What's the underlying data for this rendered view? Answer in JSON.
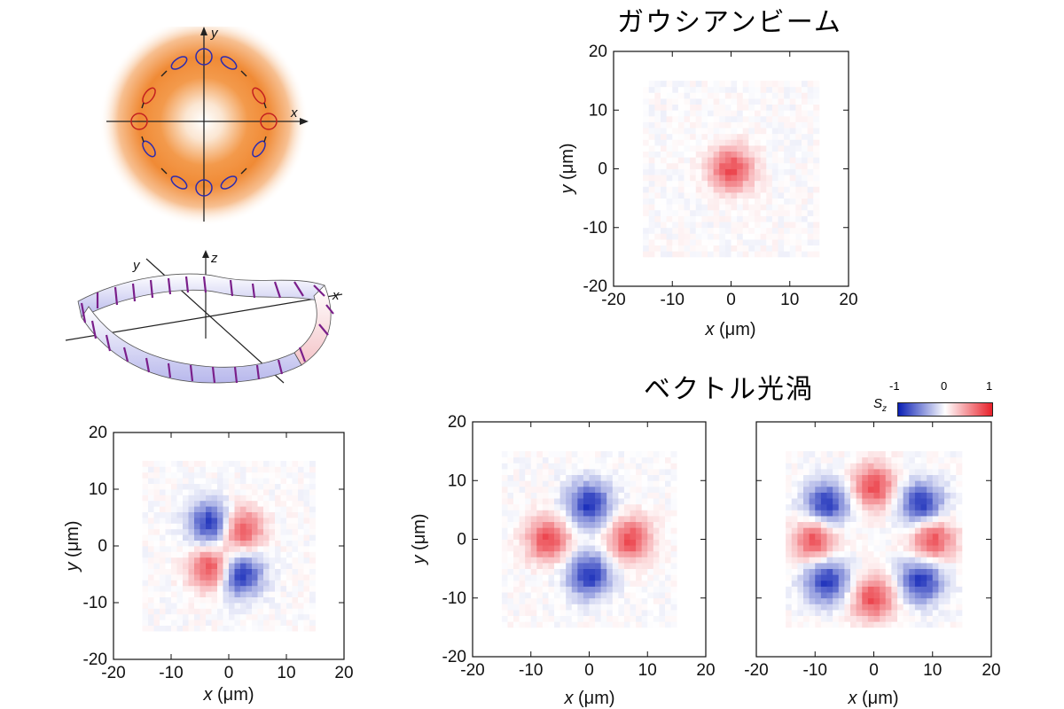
{
  "titles": {
    "gaussian": "ガウシアンビーム",
    "vector_vortex": "ベクトル光渦"
  },
  "axes": {
    "x_var": "x",
    "y_var": "y",
    "unit": "(μm)",
    "ticks": [
      "-20",
      "-10",
      "0",
      "10",
      "20"
    ]
  },
  "diagrams": {
    "top_x": "x",
    "top_y": "y",
    "wave_x": "x",
    "wave_y": "y",
    "wave_z": "z"
  },
  "colorbar": {
    "label": "S",
    "label_sub": "z",
    "min": "-1",
    "mid": "0",
    "max": "1",
    "color_neg": "#0a1fb5",
    "color_mid": "#ffffff",
    "color_pos": "#e8202a"
  },
  "chart_data": [
    {
      "type": "heatmap",
      "panel": "gaussian",
      "title": "ガウシアンビーム",
      "xlabel": "x (μm)",
      "ylabel": "y (μm)",
      "xlim": [
        -20,
        20
      ],
      "ylim": [
        -20,
        20
      ],
      "quantity": "S_z",
      "clim": [
        -1,
        1
      ],
      "features": [
        {
          "x": 0,
          "y": 0,
          "sign": "+",
          "peak": 0.8
        }
      ]
    },
    {
      "type": "heatmap",
      "panel": "bottom-left",
      "xlabel": "x (μm)",
      "ylabel": "y (μm)",
      "xlim": [
        -20,
        20
      ],
      "ylim": [
        -20,
        20
      ],
      "quantity": "S_z",
      "clim": [
        -1,
        1
      ],
      "features": [
        {
          "x": -3,
          "y": 4,
          "sign": "-",
          "peak": 0.95
        },
        {
          "x": 2,
          "y": 3,
          "sign": "+",
          "peak": 0.85
        },
        {
          "x": -3,
          "y": -4,
          "sign": "+",
          "peak": 0.85
        },
        {
          "x": 2,
          "y": -5,
          "sign": "-",
          "peak": 0.95
        }
      ]
    },
    {
      "type": "heatmap",
      "panel": "vortex-1",
      "title": "ベクトル光渦",
      "xlabel": "x (μm)",
      "ylabel": "y (μm)",
      "xlim": [
        -20,
        20
      ],
      "ylim": [
        -20,
        20
      ],
      "quantity": "S_z",
      "clim": [
        -1,
        1
      ],
      "features": [
        {
          "x": 0,
          "y": 6,
          "sign": "-",
          "peak": 0.9
        },
        {
          "x": 0,
          "y": -6,
          "sign": "-",
          "peak": 0.9
        },
        {
          "x": -7,
          "y": 0,
          "sign": "+",
          "peak": 0.8
        },
        {
          "x": 7,
          "y": 0,
          "sign": "+",
          "peak": 0.8
        }
      ]
    },
    {
      "type": "heatmap",
      "panel": "vortex-2",
      "xlabel": "x (μm)",
      "xlim": [
        -20,
        20
      ],
      "ylim": [
        -20,
        20
      ],
      "quantity": "S_z",
      "clim": [
        -1,
        1
      ],
      "features": [
        {
          "x": 0,
          "y": 9,
          "sign": "+",
          "peak": 0.8
        },
        {
          "x": 8,
          "y": 6,
          "sign": "-",
          "peak": 0.9
        },
        {
          "x": 10,
          "y": 0,
          "sign": "+",
          "peak": 0.8
        },
        {
          "x": 8,
          "y": -7,
          "sign": "-",
          "peak": 0.9
        },
        {
          "x": 0,
          "y": -10,
          "sign": "+",
          "peak": 0.8
        },
        {
          "x": -8,
          "y": -7,
          "sign": "-",
          "peak": 0.9
        },
        {
          "x": -10,
          "y": 0,
          "sign": "+",
          "peak": 0.8
        },
        {
          "x": -8,
          "y": 6,
          "sign": "-",
          "peak": 0.9
        }
      ]
    }
  ]
}
